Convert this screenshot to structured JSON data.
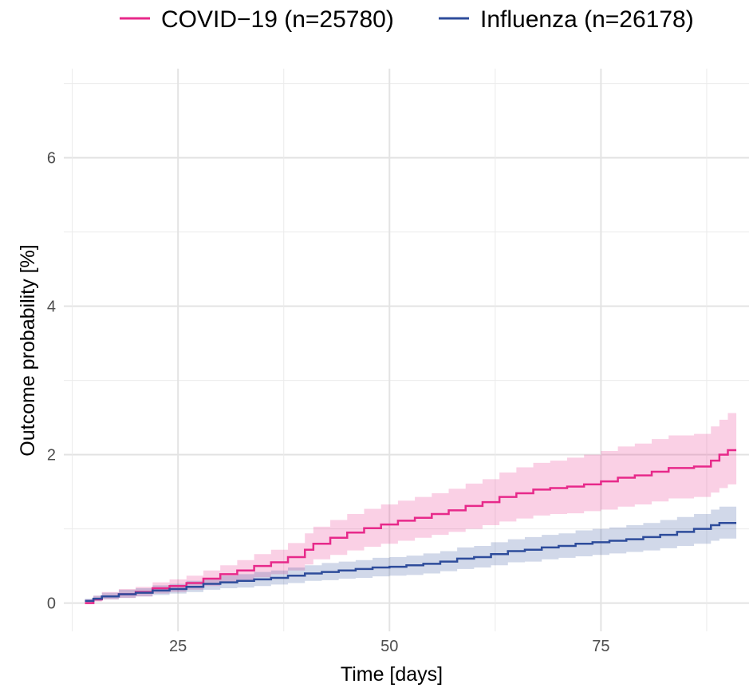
{
  "chart_data": {
    "type": "line",
    "subtype": "step (Kaplan-Meier cumulative incidence with confidence bands)",
    "xlabel": "Time [days]",
    "ylabel": "Outcome probability [%]",
    "xlim": [
      11.5,
      92.5
    ],
    "ylim": [
      -0.38,
      7.2
    ],
    "x_ticks": [
      25,
      50,
      75
    ],
    "x_tick_labels": [
      "25",
      "50",
      "75"
    ],
    "y_ticks": [
      0,
      2,
      4,
      6
    ],
    "y_tick_labels": [
      "0",
      "2",
      "4",
      "6"
    ],
    "grid": true,
    "legend_position": "top",
    "series": [
      {
        "name": "COVID−19 (n=25780)",
        "color": "#E7298A",
        "points": [
          [
            14,
            0.0
          ],
          [
            15,
            0.05
          ],
          [
            16,
            0.09
          ],
          [
            18,
            0.12
          ],
          [
            20,
            0.15
          ],
          [
            22,
            0.2
          ],
          [
            24,
            0.23
          ],
          [
            26,
            0.27
          ],
          [
            28,
            0.33
          ],
          [
            30,
            0.39
          ],
          [
            32,
            0.44
          ],
          [
            34,
            0.5
          ],
          [
            36,
            0.55
          ],
          [
            38,
            0.62
          ],
          [
            40,
            0.72
          ],
          [
            41,
            0.8
          ],
          [
            43,
            0.88
          ],
          [
            45,
            0.95
          ],
          [
            47,
            1.01
          ],
          [
            49,
            1.06
          ],
          [
            51,
            1.11
          ],
          [
            53,
            1.15
          ],
          [
            55,
            1.2
          ],
          [
            57,
            1.25
          ],
          [
            59,
            1.31
          ],
          [
            61,
            1.36
          ],
          [
            63,
            1.43
          ],
          [
            65,
            1.48
          ],
          [
            67,
            1.53
          ],
          [
            69,
            1.55
          ],
          [
            71,
            1.57
          ],
          [
            73,
            1.6
          ],
          [
            75,
            1.64
          ],
          [
            77,
            1.69
          ],
          [
            79,
            1.72
          ],
          [
            81,
            1.77
          ],
          [
            83,
            1.82
          ],
          [
            86,
            1.84
          ],
          [
            88,
            1.92
          ],
          [
            89,
            2.0
          ],
          [
            90,
            2.06
          ],
          [
            91,
            2.06
          ]
        ],
        "ci_lower": [
          0.0,
          0.02,
          0.05,
          0.07,
          0.09,
          0.13,
          0.15,
          0.18,
          0.23,
          0.27,
          0.31,
          0.35,
          0.39,
          0.44,
          0.52,
          0.59,
          0.65,
          0.71,
          0.76,
          0.8,
          0.84,
          0.88,
          0.92,
          0.96,
          1.0,
          1.05,
          1.1,
          1.14,
          1.18,
          1.2,
          1.21,
          1.24,
          1.26,
          1.3,
          1.33,
          1.37,
          1.41,
          1.43,
          1.49,
          1.55,
          1.6,
          1.6
        ],
        "ci_upper": [
          0.05,
          0.1,
          0.15,
          0.19,
          0.22,
          0.28,
          0.32,
          0.37,
          0.44,
          0.51,
          0.58,
          0.66,
          0.72,
          0.81,
          0.94,
          1.03,
          1.12,
          1.2,
          1.27,
          1.33,
          1.38,
          1.43,
          1.48,
          1.54,
          1.61,
          1.67,
          1.76,
          1.83,
          1.89,
          1.92,
          1.96,
          2.0,
          2.05,
          2.11,
          2.15,
          2.21,
          2.26,
          2.28,
          2.38,
          2.47,
          2.56,
          2.56
        ]
      },
      {
        "name": "Influenza (n=26178)",
        "color": "#2E4C9B",
        "points": [
          [
            14,
            0.03
          ],
          [
            15,
            0.06
          ],
          [
            16,
            0.09
          ],
          [
            18,
            0.12
          ],
          [
            20,
            0.14
          ],
          [
            22,
            0.17
          ],
          [
            24,
            0.19
          ],
          [
            26,
            0.22
          ],
          [
            28,
            0.26
          ],
          [
            30,
            0.28
          ],
          [
            32,
            0.3
          ],
          [
            34,
            0.32
          ],
          [
            36,
            0.34
          ],
          [
            38,
            0.37
          ],
          [
            40,
            0.4
          ],
          [
            42,
            0.42
          ],
          [
            44,
            0.44
          ],
          [
            46,
            0.46
          ],
          [
            48,
            0.48
          ],
          [
            50,
            0.49
          ],
          [
            52,
            0.51
          ],
          [
            54,
            0.53
          ],
          [
            56,
            0.56
          ],
          [
            58,
            0.6
          ],
          [
            60,
            0.62
          ],
          [
            62,
            0.66
          ],
          [
            64,
            0.7
          ],
          [
            66,
            0.72
          ],
          [
            68,
            0.75
          ],
          [
            70,
            0.77
          ],
          [
            72,
            0.8
          ],
          [
            74,
            0.82
          ],
          [
            76,
            0.84
          ],
          [
            78,
            0.86
          ],
          [
            80,
            0.89
          ],
          [
            82,
            0.92
          ],
          [
            84,
            0.96
          ],
          [
            86,
            1.0
          ],
          [
            88,
            1.05
          ],
          [
            89,
            1.08
          ],
          [
            91,
            1.08
          ]
        ],
        "ci_lower": [
          0.01,
          0.03,
          0.05,
          0.07,
          0.09,
          0.11,
          0.13,
          0.15,
          0.18,
          0.2,
          0.21,
          0.23,
          0.25,
          0.27,
          0.3,
          0.31,
          0.33,
          0.34,
          0.36,
          0.37,
          0.38,
          0.4,
          0.43,
          0.46,
          0.48,
          0.51,
          0.55,
          0.56,
          0.59,
          0.61,
          0.63,
          0.65,
          0.67,
          0.69,
          0.71,
          0.74,
          0.77,
          0.8,
          0.84,
          0.87,
          0.87
        ],
        "ci_upper": [
          0.06,
          0.1,
          0.14,
          0.18,
          0.2,
          0.24,
          0.26,
          0.3,
          0.34,
          0.37,
          0.39,
          0.42,
          0.44,
          0.48,
          0.51,
          0.54,
          0.56,
          0.58,
          0.61,
          0.62,
          0.64,
          0.67,
          0.7,
          0.75,
          0.77,
          0.82,
          0.86,
          0.89,
          0.92,
          0.94,
          0.98,
          1.0,
          1.02,
          1.05,
          1.08,
          1.12,
          1.16,
          1.2,
          1.26,
          1.3,
          1.3
        ]
      }
    ]
  }
}
